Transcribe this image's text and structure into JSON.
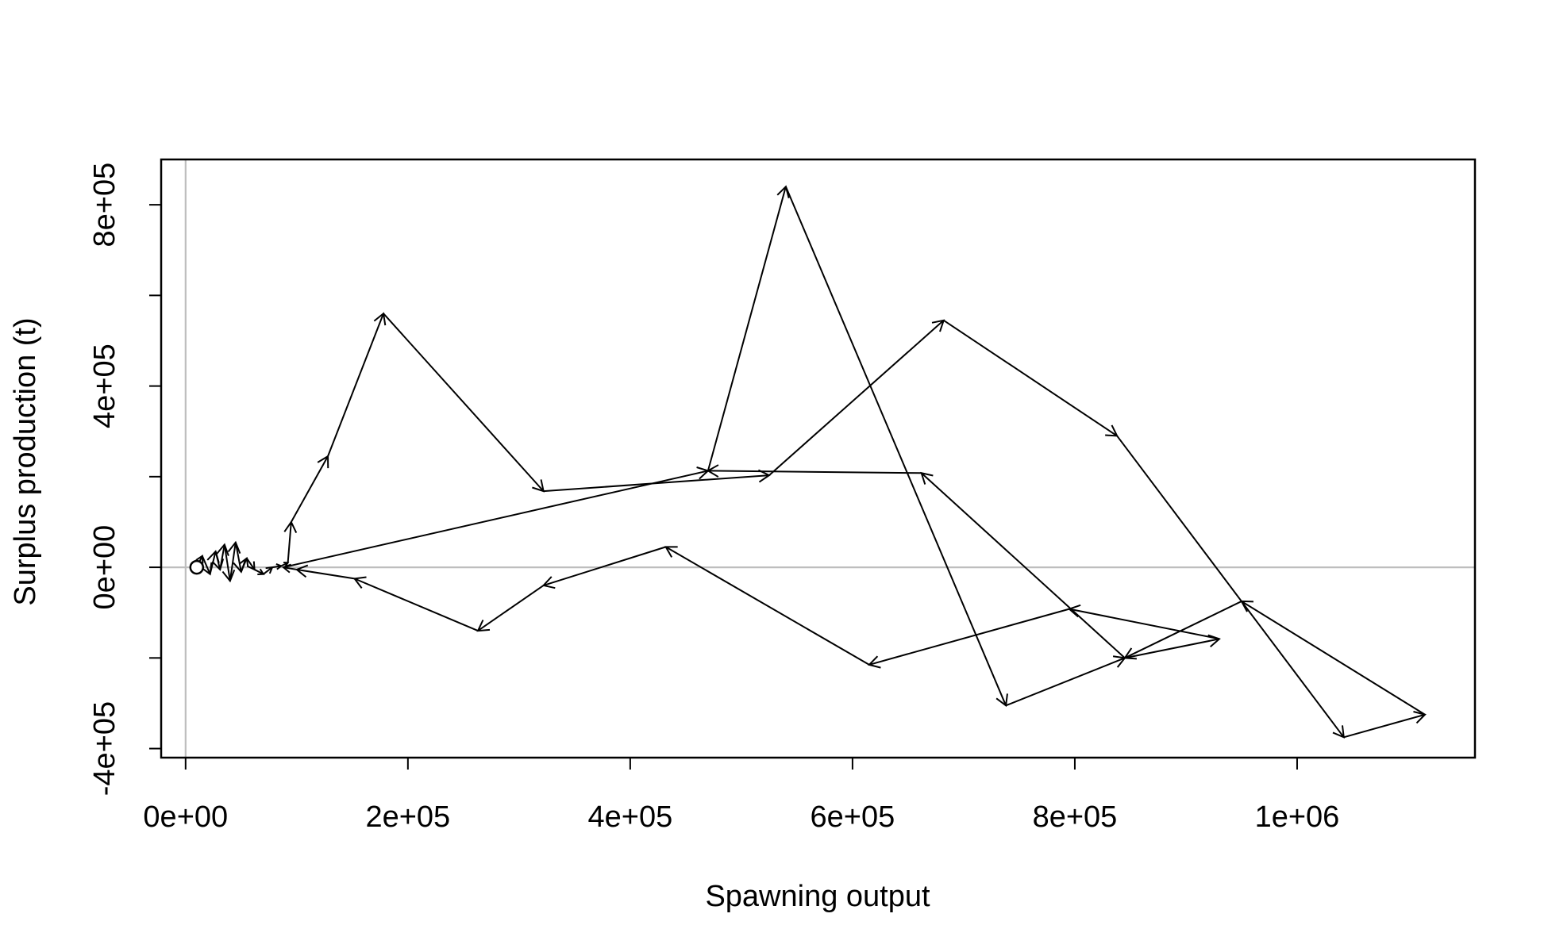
{
  "chart_data": {
    "type": "line",
    "title": "",
    "xlabel": "Spawning output",
    "ylabel": "Surplus production (t)",
    "xlim": [
      -22000,
      1160000
    ],
    "ylim": [
      -420000,
      900000
    ],
    "x_ticks": [
      {
        "value": 0,
        "label": "0e+00"
      },
      {
        "value": 200000,
        "label": "2e+05"
      },
      {
        "value": 400000,
        "label": "4e+05"
      },
      {
        "value": 600000,
        "label": "6e+05"
      },
      {
        "value": 800000,
        "label": "8e+05"
      },
      {
        "value": 1000000,
        "label": "1e+06"
      }
    ],
    "y_ticks": [
      {
        "value": -400000,
        "label": "-4e+05"
      },
      {
        "value": -200000,
        "label": ""
      },
      {
        "value": 0,
        "label": "0e+00"
      },
      {
        "value": 200000,
        "label": ""
      },
      {
        "value": 400000,
        "label": "4e+05"
      },
      {
        "value": 600000,
        "label": ""
      },
      {
        "value": 800000,
        "label": "8e+05"
      }
    ],
    "reference_lines": {
      "x": 0,
      "y": 0,
      "color": "#bebebe"
    },
    "start_point": {
      "x": 10000,
      "y": 0
    },
    "series": [
      {
        "points": [
          {
            "x": 10000,
            "y": 0
          },
          {
            "x": 15000,
            "y": 25000
          },
          {
            "x": 22000,
            "y": -15000
          },
          {
            "x": 27000,
            "y": 35000
          },
          {
            "x": 31000,
            "y": -5000
          },
          {
            "x": 35000,
            "y": 50000
          },
          {
            "x": 40000,
            "y": -30000
          },
          {
            "x": 45000,
            "y": 55000
          },
          {
            "x": 50000,
            "y": -10000
          },
          {
            "x": 55000,
            "y": 20000
          },
          {
            "x": 62000,
            "y": -5000
          },
          {
            "x": 70000,
            "y": -15000
          },
          {
            "x": 78000,
            "y": 0
          },
          {
            "x": 86000,
            "y": 3000
          },
          {
            "x": 92000,
            "y": 10000
          },
          {
            "x": 95000,
            "y": 100000
          },
          {
            "x": 128000,
            "y": 245000
          },
          {
            "x": 178000,
            "y": 560000
          },
          {
            "x": 322000,
            "y": 168000
          },
          {
            "x": 525000,
            "y": 203000
          },
          {
            "x": 682000,
            "y": 545000
          },
          {
            "x": 838000,
            "y": 290000
          },
          {
            "x": 1042000,
            "y": -375000
          },
          {
            "x": 1115000,
            "y": -325000
          },
          {
            "x": 950000,
            "y": -75000
          },
          {
            "x": 845000,
            "y": -200000
          },
          {
            "x": 930000,
            "y": -158000
          },
          {
            "x": 795000,
            "y": -92000
          },
          {
            "x": 615000,
            "y": -215000
          },
          {
            "x": 432000,
            "y": 45000
          },
          {
            "x": 322000,
            "y": -40000
          },
          {
            "x": 263000,
            "y": -140000
          },
          {
            "x": 152000,
            "y": -25000
          },
          {
            "x": 100000,
            "y": -5000
          },
          {
            "x": 88000,
            "y": 0
          },
          {
            "x": 470000,
            "y": 213000
          },
          {
            "x": 540000,
            "y": 840000
          },
          {
            "x": 738000,
            "y": -305000
          },
          {
            "x": 845000,
            "y": -200000
          },
          {
            "x": 662000,
            "y": 208000
          },
          {
            "x": 470000,
            "y": 213000
          }
        ]
      }
    ],
    "grid": false,
    "legend": "none"
  }
}
